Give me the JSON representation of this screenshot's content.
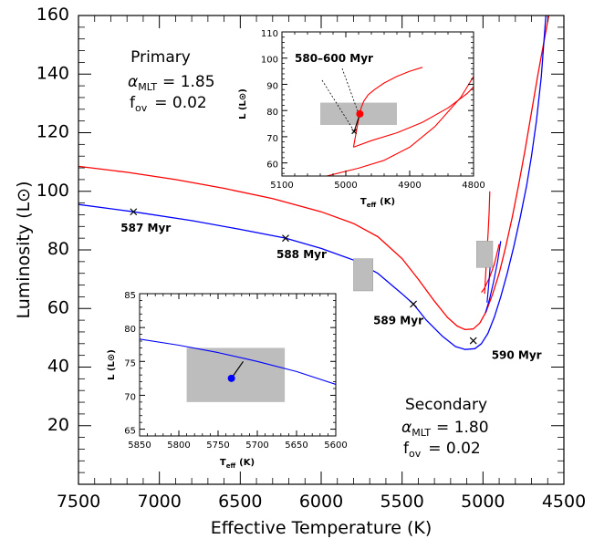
{
  "chart_data": [
    {
      "type": "line",
      "xlabel": "Effective Temperature (K)",
      "ylabel": "Luminosity (L",
      "ylabel_symbol": "⊙",
      "ylabel_close": ")",
      "xlim": [
        7500,
        4500
      ],
      "ylim": [
        0,
        160
      ],
      "x_ticks": [
        7500,
        7000,
        6500,
        6000,
        5500,
        5000,
        4500
      ],
      "y_ticks": [
        20,
        40,
        60,
        80,
        100,
        120,
        140,
        160
      ],
      "series": [
        {
          "color": "#ff0000",
          "x": [
            7500,
            7200,
            6900,
            6600,
            6300,
            6000,
            5800,
            5650,
            5500,
            5400,
            5300,
            5220,
            5160,
            5110,
            5060,
            5020,
            4980,
            4940,
            4900,
            4860,
            4820,
            4780,
            4740,
            4700,
            4660,
            4620,
            4590
          ],
          "y": [
            108.5,
            106.5,
            104,
            101,
            97.5,
            93,
            89,
            84.5,
            77,
            70,
            62.5,
            57,
            54,
            52.8,
            53,
            55,
            59,
            65,
            72,
            81,
            91,
            102,
            114,
            127,
            140,
            152,
            161
          ]
        },
        {
          "color": "#0000ff",
          "x": [
            7500,
            7160,
            6800,
            6500,
            6220,
            6000,
            5800,
            5650,
            5500,
            5430,
            5350,
            5250,
            5170,
            5110,
            5050,
            5010,
            4970,
            4930,
            4890,
            4850,
            4810,
            4770,
            4730,
            4700,
            4670,
            4640,
            4610
          ],
          "y": [
            95.5,
            93,
            90,
            87,
            84,
            80.5,
            76.5,
            72,
            65,
            61.5,
            56,
            50.5,
            47,
            46,
            46.3,
            48,
            51.5,
            57,
            64,
            72,
            81,
            91,
            102,
            112,
            124,
            139,
            161
          ]
        }
      ],
      "age_markers": [
        {
          "x": 7160,
          "y": 93,
          "label": "587 Myr"
        },
        {
          "x": 6220,
          "y": 84,
          "label": "588 Myr"
        },
        {
          "x": 5430,
          "y": 61.5,
          "label": "589 Myr"
        },
        {
          "x": 5060,
          "y": 49,
          "label": "590 Myr"
        }
      ],
      "observed_points": [
        {
          "name": "Secondary",
          "x": 5730,
          "y": 72.5,
          "color": "#0000ff",
          "box_x": [
            5800,
            5680
          ],
          "box_y": [
            66,
            77
          ]
        },
        {
          "name": "Primary",
          "x": 4980,
          "y": 78.7,
          "color": "#ff0000",
          "box_x": [
            5040,
            4940
          ],
          "box_y": [
            74,
            83
          ]
        }
      ],
      "annotations": {
        "primary": {
          "title": "Primary",
          "alpha_label": "α",
          "alpha_sub": "MLT",
          "alpha_value": "= 1.85",
          "f_label": "f",
          "f_sub": "ov",
          "f_value": "= 0.02"
        },
        "secondary": {
          "title": "Secondary",
          "alpha_label": "α",
          "alpha_sub": "MLT",
          "alpha_value": "= 1.80",
          "f_label": "f",
          "f_sub": "ov",
          "f_value": "= 0.02"
        }
      }
    },
    {
      "type": "line",
      "inset": "upper",
      "xlabel_main": "T",
      "xlabel_sub": "eff",
      "xlabel_unit": "(K)",
      "ylabel": "L (L",
      "ylabel_symbol": "⊙",
      "ylabel_close": ")",
      "xlim": [
        5100,
        4800
      ],
      "ylim": [
        55,
        110
      ],
      "x_ticks": [
        5100,
        5000,
        4900,
        4800
      ],
      "y_ticks": [
        60,
        70,
        80,
        90,
        100,
        110
      ],
      "annotation": "580–600 Myr",
      "box_x": [
        5040,
        4920
      ],
      "box_y": [
        74.5,
        83
      ],
      "point": {
        "x": 4978,
        "y": 78.7,
        "color": "#ff0000"
      },
      "marker": {
        "x": 4987,
        "y": 72
      },
      "series": [
        {
          "color": "#ff0000",
          "x": [
            5030,
            4980,
            4940,
            4900,
            4860,
            4820,
            4800
          ],
          "y": [
            55,
            58,
            61,
            66,
            74,
            85,
            93
          ]
        },
        {
          "color": "#ff0000",
          "x": [
            4988,
            4960,
            4920,
            4880,
            4840,
            4810,
            4800
          ],
          "y": [
            66,
            68.5,
            71.5,
            75.5,
            81,
            86.5,
            89
          ]
        },
        {
          "color": "#ff0000",
          "x": [
            4988,
            4985,
            4982,
            4979,
            4976,
            4972,
            4965,
            4955,
            4940,
            4920,
            4900,
            4880
          ],
          "y": [
            66,
            70,
            74,
            78,
            81,
            83.5,
            86,
            88,
            90.5,
            93,
            95,
            96.5
          ]
        }
      ]
    },
    {
      "type": "line",
      "inset": "lower",
      "xlabel_main": "T",
      "xlabel_sub": "eff",
      "xlabel_unit": "(K)",
      "ylabel": "L (L",
      "ylabel_symbol": "⊙",
      "ylabel_close": ")",
      "xlim": [
        5850,
        5600
      ],
      "ylim": [
        64,
        85
      ],
      "x_ticks": [
        5850,
        5800,
        5750,
        5700,
        5650,
        5600
      ],
      "y_ticks": [
        65,
        70,
        75,
        80,
        85
      ],
      "box_x": [
        5790,
        5665
      ],
      "box_y": [
        69,
        77
      ],
      "point": {
        "x": 5733,
        "y": 72.5,
        "color": "#0000ff"
      },
      "marker": {
        "x": 5718,
        "y": 75
      },
      "series": [
        {
          "color": "#0000ff",
          "x": [
            5850,
            5800,
            5750,
            5700,
            5650,
            5600
          ],
          "y": [
            78.3,
            77.4,
            76.3,
            75,
            73.5,
            71.6
          ]
        }
      ]
    }
  ]
}
